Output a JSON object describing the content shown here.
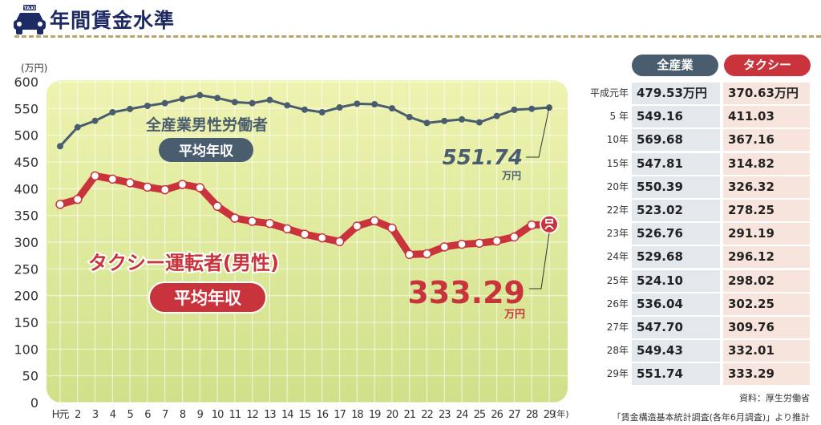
{
  "title": "年間賃金水準",
  "taxi_sign": "TAXI",
  "unit_label": "(万円)",
  "x_unit": "(年)",
  "chart_data": {
    "type": "line",
    "title": "年間賃金水準",
    "ylabel": "(万円)",
    "xlabel": "(年)",
    "ylim": [
      0,
      600
    ],
    "yticks": [
      0,
      50,
      100,
      150,
      200,
      250,
      300,
      350,
      400,
      450,
      500,
      550,
      600
    ],
    "categories": [
      "H元",
      "2",
      "3",
      "4",
      "5",
      "6",
      "7",
      "8",
      "9",
      "10",
      "11",
      "12",
      "13",
      "14",
      "15",
      "16",
      "17",
      "18",
      "19",
      "20",
      "21",
      "22",
      "23",
      "24",
      "25",
      "26",
      "27",
      "28",
      "29"
    ],
    "series": [
      {
        "name": "全産業男性労働者 平均年収",
        "label1": "全産業男性労働者",
        "label2": "平均年収",
        "color": "#4a5d6e",
        "end_label": "551.74",
        "end_unit": "万円",
        "values": [
          479.53,
          515,
          527,
          543,
          549.16,
          555,
          560,
          568,
          575,
          569.68,
          562,
          560,
          566,
          556,
          547.81,
          543,
          552,
          559,
          558,
          550.39,
          534,
          523.02,
          526.76,
          529.68,
          524.1,
          536.04,
          547.7,
          549.43,
          551.74
        ]
      },
      {
        "name": "タクシー運転者(男性) 平均年収",
        "label1": "タクシー運転者(男性)",
        "label2": "平均年収",
        "color": "#c9333b",
        "end_label": "333.29",
        "end_unit": "万円",
        "values": [
          370.63,
          380,
          424,
          418,
          411.03,
          403,
          398,
          408,
          402,
          367.16,
          345,
          339,
          335,
          325,
          314.82,
          308,
          301,
          330,
          340,
          326.32,
          277,
          278.25,
          291.19,
          296.12,
          298.02,
          302.25,
          309.76,
          332.01,
          333.29
        ]
      }
    ],
    "grid": true
  },
  "table": {
    "headers": [
      "全産業",
      "タクシー"
    ],
    "rows": [
      {
        "year": "平成元年",
        "all": "479.53万円",
        "taxi": "370.63万円"
      },
      {
        "year": "5 年",
        "all": "549.16",
        "taxi": "411.03"
      },
      {
        "year": "10年",
        "all": "569.68",
        "taxi": "367.16"
      },
      {
        "year": "15年",
        "all": "547.81",
        "taxi": "314.82"
      },
      {
        "year": "20年",
        "all": "550.39",
        "taxi": "326.32"
      },
      {
        "year": "22年",
        "all": "523.02",
        "taxi": "278.25"
      },
      {
        "year": "23年",
        "all": "526.76",
        "taxi": "291.19"
      },
      {
        "year": "24年",
        "all": "529.68",
        "taxi": "296.12"
      },
      {
        "year": "25年",
        "all": "524.10",
        "taxi": "298.02"
      },
      {
        "year": "26年",
        "all": "536.04",
        "taxi": "302.25"
      },
      {
        "year": "27年",
        "all": "547.70",
        "taxi": "309.76"
      },
      {
        "year": "28年",
        "all": "549.43",
        "taxi": "332.01"
      },
      {
        "year": "29年",
        "all": "551.74",
        "taxi": "333.29"
      }
    ]
  },
  "source": "資料：厚生労働省",
  "note": "「賃金構造基本統計調査(各年6月調査)」より推計"
}
